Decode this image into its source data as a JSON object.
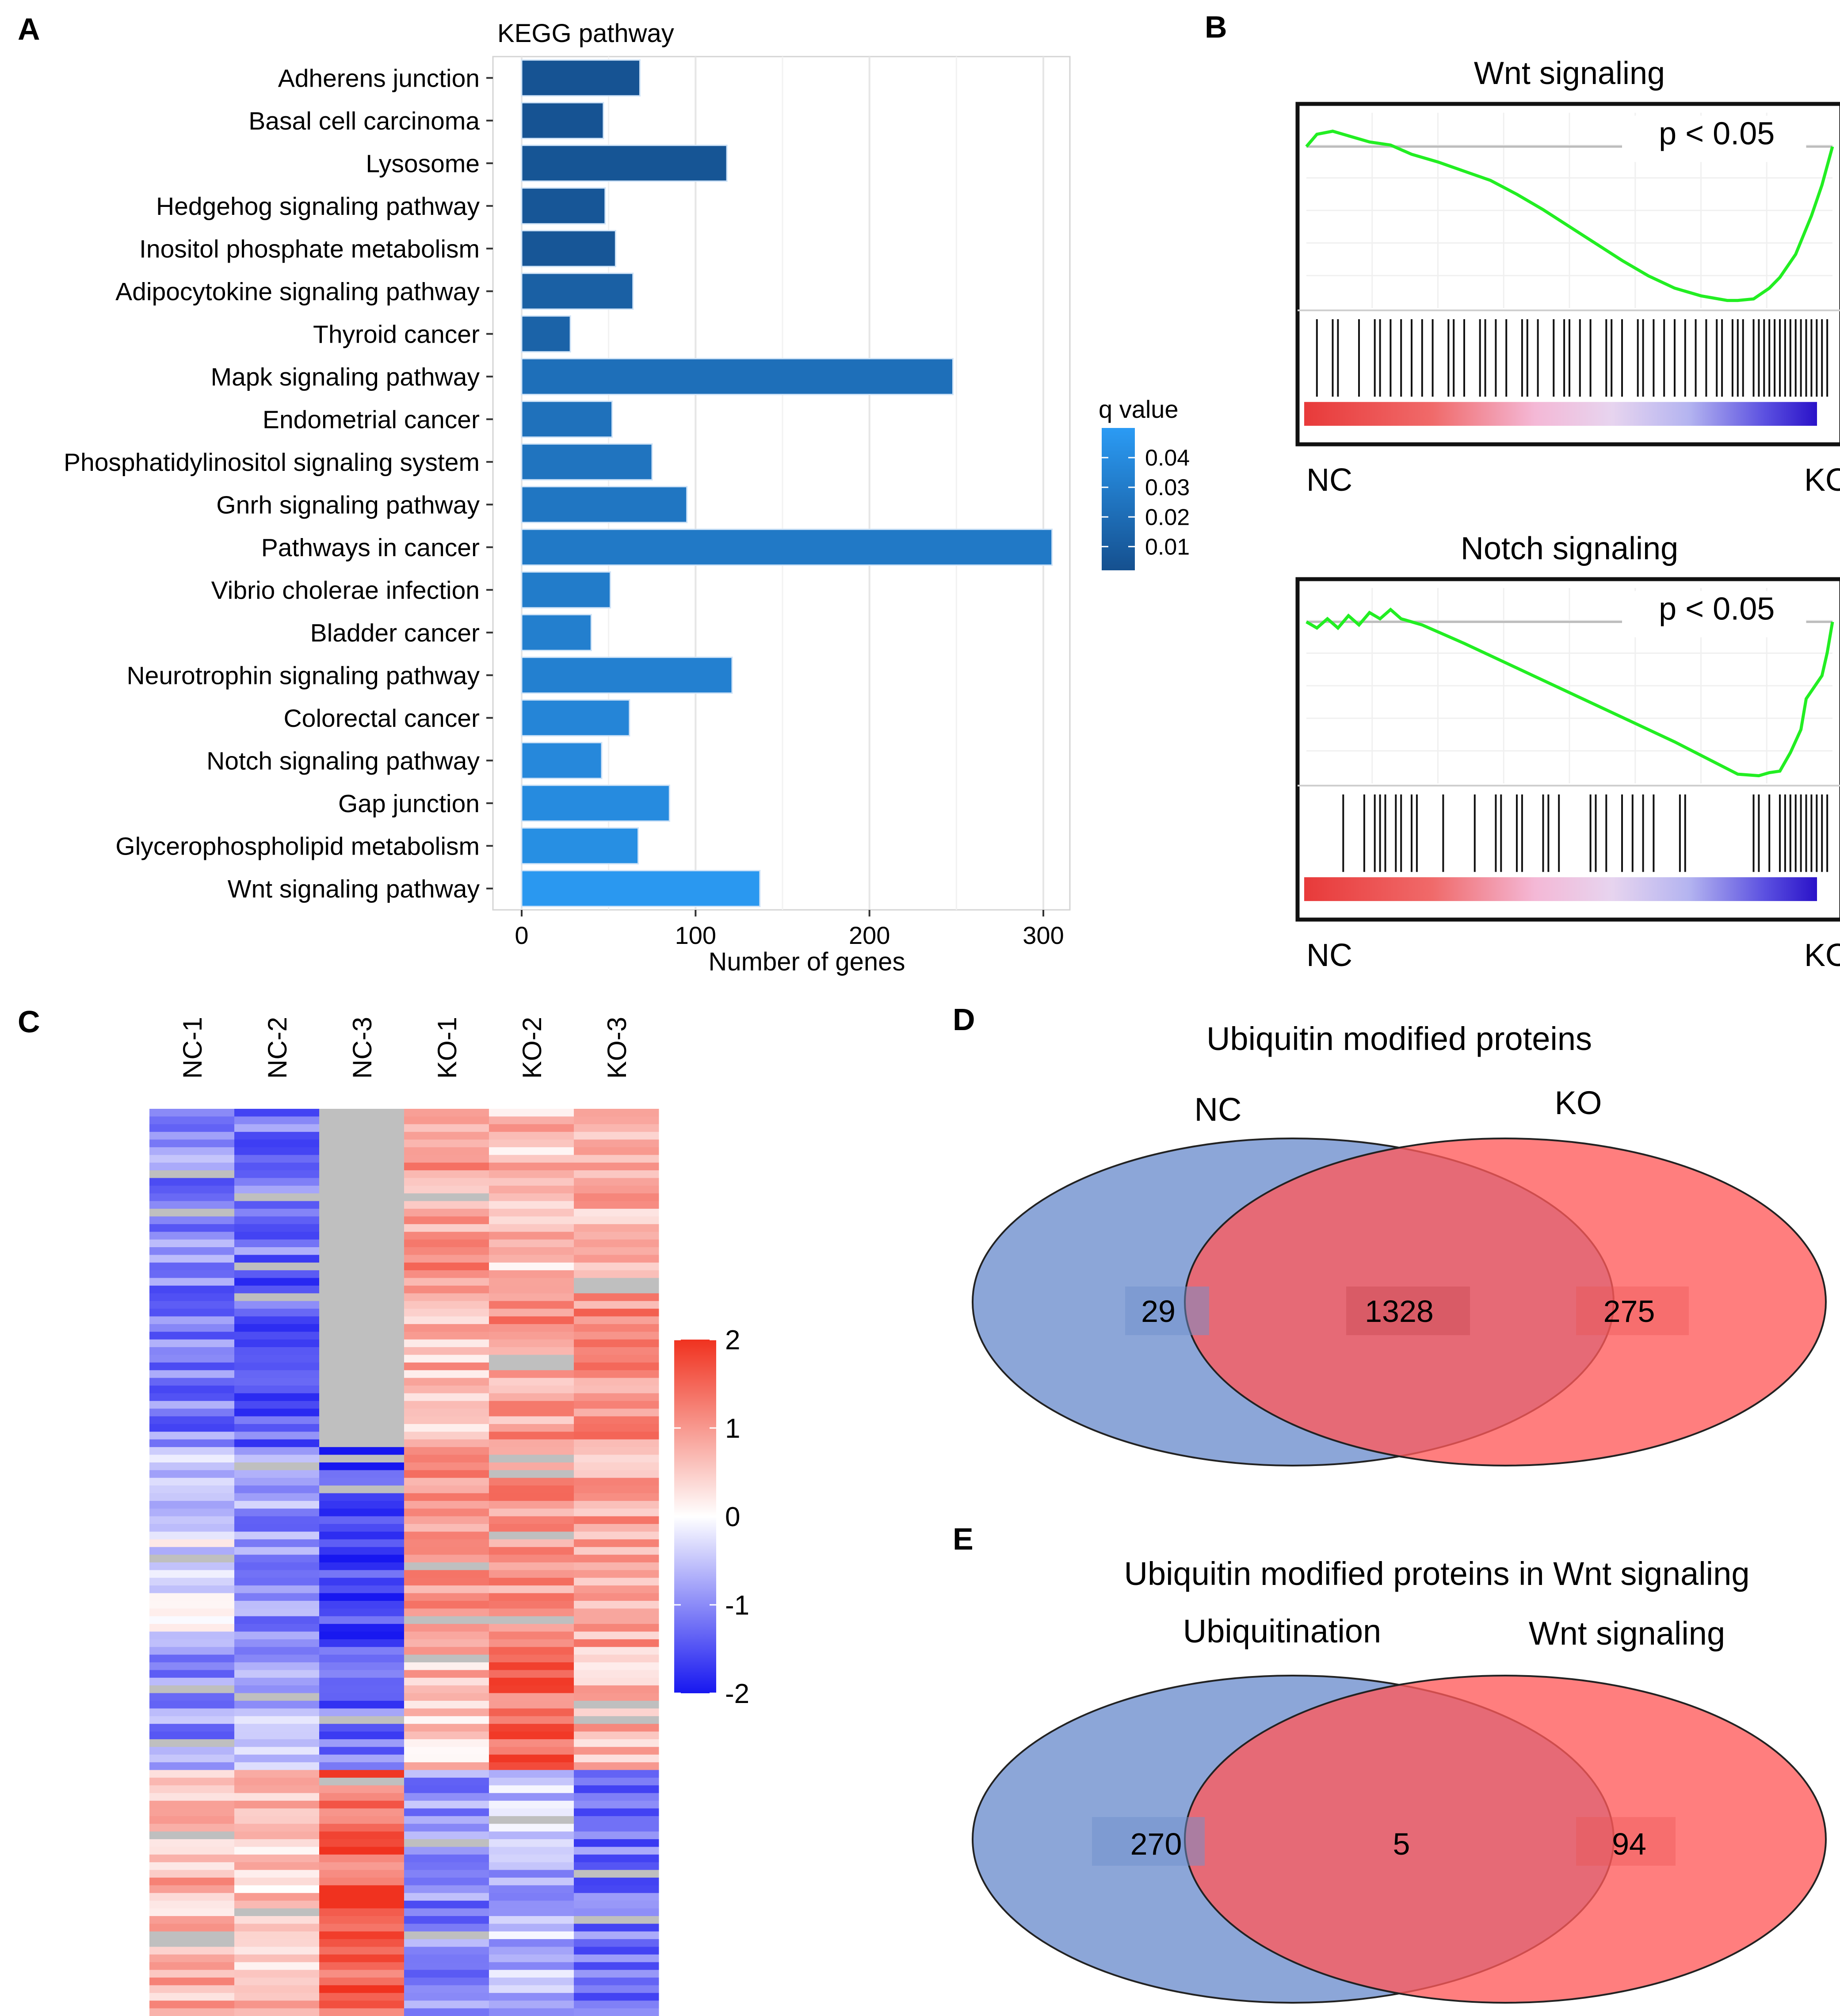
{
  "panel_letters": [
    "A",
    "B",
    "C",
    "D",
    "E"
  ],
  "chart_data": [
    {
      "panel": "A",
      "type": "bar",
      "orientation": "horizontal",
      "title": "KEGG pathway",
      "xlabel": "Number of genes",
      "ylabel": "",
      "xlim": [
        0,
        320
      ],
      "xticks": [
        0,
        100,
        200,
        300
      ],
      "grid": true,
      "categories": [
        "Adherens junction",
        "Basal cell carcinoma",
        "Lysosome",
        "Hedgehog signaling pathway",
        "Inositol phosphate  metabolism",
        "Adipocytokine signaling pathway",
        "Thyroid cancer",
        "Mapk signaling pathway",
        "Endometrial cancer",
        "Phosphatidylinositol signaling system",
        "Gnrh signaling pathway",
        "Pathways in cancer",
        "Vibrio cholerae infection",
        "Bladder cancer",
        "Neurotrophin signaling pathway",
        "Colorectal cancer",
        "Notch signaling pathway",
        "Gap junction",
        "Glycerophospholipid  metabolism",
        "Wnt signaling pathway"
      ],
      "values": [
        68,
        47,
        118,
        48,
        54,
        64,
        28,
        248,
        52,
        75,
        95,
        305,
        51,
        40,
        121,
        62,
        46,
        85,
        67,
        137
      ],
      "q_values": [
        0.004,
        0.004,
        0.005,
        0.006,
        0.006,
        0.012,
        0.014,
        0.022,
        0.023,
        0.025,
        0.026,
        0.028,
        0.03,
        0.032,
        0.033,
        0.036,
        0.038,
        0.04,
        0.042,
        0.048
      ],
      "colorbar": {
        "title": "q value",
        "ticks": [
          "0.04",
          "0.03",
          "0.02",
          "0.01"
        ],
        "tick_values": [
          0.04,
          0.03,
          0.02,
          0.01
        ],
        "range": [
          0.002,
          0.05
        ],
        "low_color": "#15508f",
        "high_color": "#2b9bf4"
      }
    },
    {
      "panel": "B1",
      "type": "line",
      "title": "Wnt signaling",
      "annotation": "p < 0.05",
      "left_label": "NC",
      "right_label": "KO",
      "x": [
        0,
        0.02,
        0.05,
        0.08,
        0.12,
        0.16,
        0.2,
        0.25,
        0.3,
        0.35,
        0.4,
        0.45,
        0.5,
        0.55,
        0.6,
        0.65,
        0.7,
        0.75,
        0.8,
        0.82,
        0.85,
        0.88,
        0.9,
        0.93,
        0.96,
        0.98,
        1.0
      ],
      "y": [
        0.0,
        0.08,
        0.1,
        0.07,
        0.03,
        0.01,
        -0.05,
        -0.1,
        -0.16,
        -0.22,
        -0.31,
        -0.41,
        -0.52,
        -0.63,
        -0.74,
        -0.84,
        -0.92,
        -0.97,
        -1.0,
        -1.0,
        -0.99,
        -0.92,
        -0.85,
        -0.7,
        -0.45,
        -0.25,
        0.0
      ],
      "ylim": [
        -1.05,
        0.22
      ],
      "hit_positions": [
        0.02,
        0.05,
        0.06,
        0.1,
        0.13,
        0.14,
        0.16,
        0.18,
        0.2,
        0.22,
        0.24,
        0.27,
        0.28,
        0.3,
        0.33,
        0.34,
        0.36,
        0.38,
        0.41,
        0.42,
        0.44,
        0.47,
        0.49,
        0.5,
        0.52,
        0.54,
        0.57,
        0.58,
        0.6,
        0.63,
        0.64,
        0.66,
        0.68,
        0.7,
        0.72,
        0.74,
        0.76,
        0.78,
        0.79,
        0.81,
        0.82,
        0.83,
        0.85,
        0.86,
        0.87,
        0.88,
        0.89,
        0.9,
        0.91,
        0.92,
        0.93,
        0.94,
        0.95,
        0.96,
        0.97,
        0.98,
        0.99
      ]
    },
    {
      "panel": "B2",
      "type": "line",
      "title": "Notch signaling",
      "annotation": "p < 0.05",
      "left_label": "NC",
      "right_label": "KO",
      "x": [
        0,
        0.02,
        0.04,
        0.06,
        0.08,
        0.1,
        0.12,
        0.14,
        0.16,
        0.18,
        0.22,
        0.3,
        0.4,
        0.5,
        0.6,
        0.7,
        0.78,
        0.82,
        0.86,
        0.88,
        0.9,
        0.92,
        0.94,
        0.95,
        0.97,
        0.98,
        0.99,
        1.0
      ],
      "y": [
        0.0,
        -0.04,
        0.02,
        -0.04,
        0.04,
        -0.02,
        0.06,
        0.02,
        0.08,
        0.02,
        -0.02,
        -0.14,
        -0.3,
        -0.46,
        -0.62,
        -0.78,
        -0.92,
        -0.99,
        -1.0,
        -0.98,
        -0.97,
        -0.85,
        -0.7,
        -0.5,
        -0.4,
        -0.35,
        -0.2,
        0.0
      ],
      "ylim": [
        -1.05,
        0.22
      ],
      "hit_positions": [
        0.07,
        0.11,
        0.13,
        0.14,
        0.15,
        0.17,
        0.18,
        0.2,
        0.21,
        0.26,
        0.32,
        0.36,
        0.37,
        0.4,
        0.41,
        0.45,
        0.46,
        0.48,
        0.54,
        0.55,
        0.57,
        0.6,
        0.62,
        0.64,
        0.66,
        0.71,
        0.72,
        0.85,
        0.86,
        0.88,
        0.9,
        0.91,
        0.92,
        0.93,
        0.94,
        0.95,
        0.96,
        0.97,
        0.98,
        0.99
      ]
    },
    {
      "panel": "C",
      "type": "heatmap",
      "columns": [
        "NC-1",
        "NC-2",
        "NC-3",
        "KO-1",
        "KO-2",
        "KO-3"
      ],
      "color_scale": {
        "min": -2,
        "max": 2,
        "ticks": [
          "2",
          "1",
          "0",
          "-1",
          "-2"
        ],
        "tick_values": [
          2,
          1,
          0,
          -1,
          -2
        ],
        "low_color": "#1717f0",
        "mid_color": "#ffffff",
        "high_color": "#f0321f"
      },
      "row_blocks": [
        {
          "rows": 22,
          "values": [
            -1.0,
            -1.2,
            null,
            1.0,
            0.6,
            0.8
          ]
        },
        {
          "rows": 22,
          "values": [
            -1.1,
            -1.4,
            null,
            0.7,
            1.0,
            1.1
          ]
        },
        {
          "rows": 26,
          "values": [
            -0.3,
            -0.9,
            -1.7,
            1.0,
            1.1,
            0.9
          ]
        },
        {
          "rows": 16,
          "values": [
            -1.0,
            -0.7,
            -1.3,
            0.6,
            1.5,
            0.7
          ]
        },
        {
          "rows": 32,
          "values": [
            0.7,
            0.5,
            1.5,
            -1.0,
            -0.6,
            -1.2
          ]
        }
      ]
    },
    {
      "panel": "D",
      "type": "venn",
      "title": "Ubiquitin modified proteins",
      "sets": [
        "NC",
        "KO"
      ],
      "values": {
        "left_only": "29",
        "overlap": "1328",
        "right_only": "275"
      }
    },
    {
      "panel": "E",
      "type": "venn",
      "title": "Ubiquitin modified proteins in Wnt signaling",
      "sets": [
        "Ubiquitination",
        "Wnt signaling"
      ],
      "values": {
        "left_only": "270",
        "overlap": "5",
        "right_only": "94"
      }
    }
  ]
}
